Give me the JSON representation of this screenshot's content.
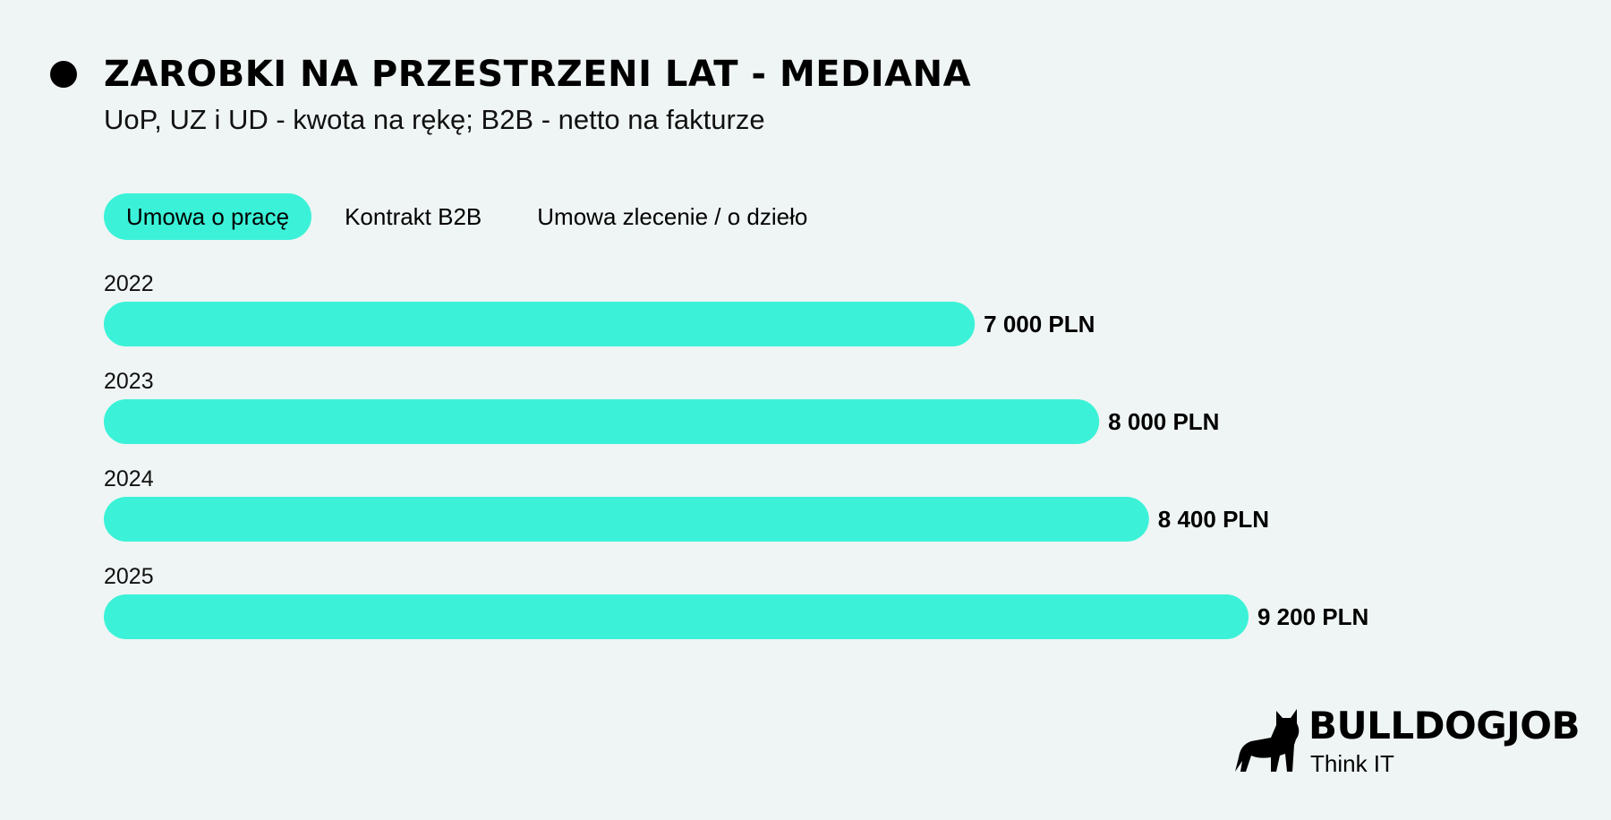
{
  "header": {
    "title": "ZAROBKI NA PRZESTRZENI LAT - MEDIANA",
    "subtitle": "UoP, UZ i UD - kwota na rękę; B2B - netto na fakturze"
  },
  "tabs": [
    {
      "label": "Umowa o pracę",
      "active": true
    },
    {
      "label": "Kontrakt B2B",
      "active": false
    },
    {
      "label": "Umowa zlecenie / o dzieło",
      "active": false
    }
  ],
  "chart_data": {
    "type": "bar",
    "orientation": "horizontal",
    "categories": [
      "2022",
      "2023",
      "2024",
      "2025"
    ],
    "values": [
      7000,
      8000,
      8400,
      9200
    ],
    "data_labels": [
      "7 000 PLN",
      "8 000 PLN",
      "8 400 PLN",
      "9 200 PLN"
    ],
    "bar_color": "#3bf2d8",
    "grid": false,
    "legend": false
  },
  "logo": {
    "name": "BULLDOGJOB",
    "tagline": "Think IT",
    "icon": "bulldog-icon"
  },
  "colors": {
    "background": "#eff5f4",
    "accent": "#3bf2d8",
    "text": "#000000"
  }
}
